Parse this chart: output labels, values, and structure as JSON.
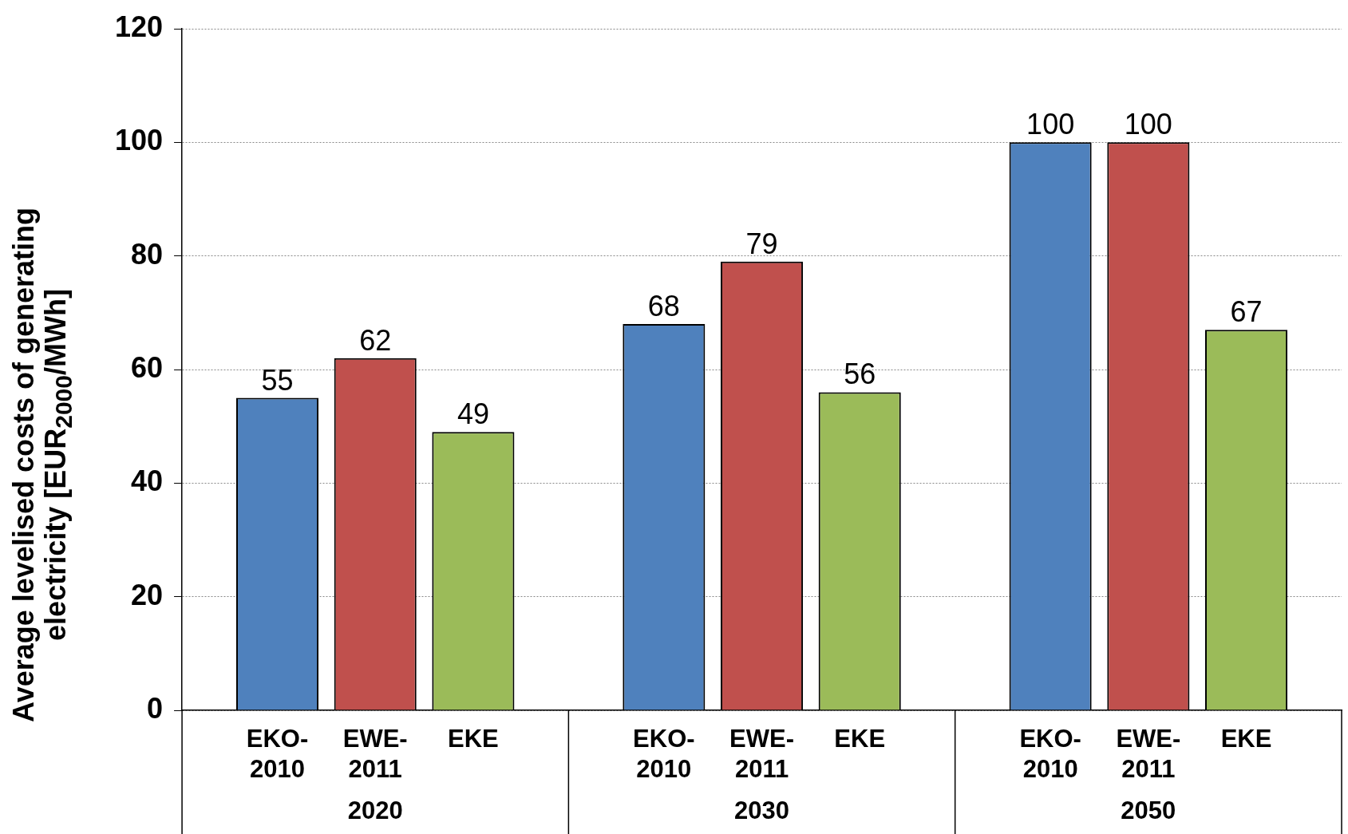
{
  "chart_data": {
    "type": "bar",
    "ylabel": "Average levelised costs of generating electricity  [EUR$_{2000}$/MWh]",
    "categories": [
      "2020",
      "2030",
      "2050"
    ],
    "series": [
      {
        "name": "EKO-2010",
        "color": "#4f81bd",
        "values": [
          55,
          68,
          100
        ]
      },
      {
        "name": "EWE-2011",
        "color": "#c0504d",
        "values": [
          62,
          79,
          100
        ]
      },
      {
        "name": "EKE",
        "color": "#9bbb59",
        "values": [
          49,
          56,
          67
        ]
      }
    ],
    "ylim": [
      0,
      120
    ],
    "yticks": [
      0,
      20,
      40,
      60,
      80,
      100,
      120
    ],
    "grid": "y",
    "legend": false,
    "data_labels": true
  }
}
